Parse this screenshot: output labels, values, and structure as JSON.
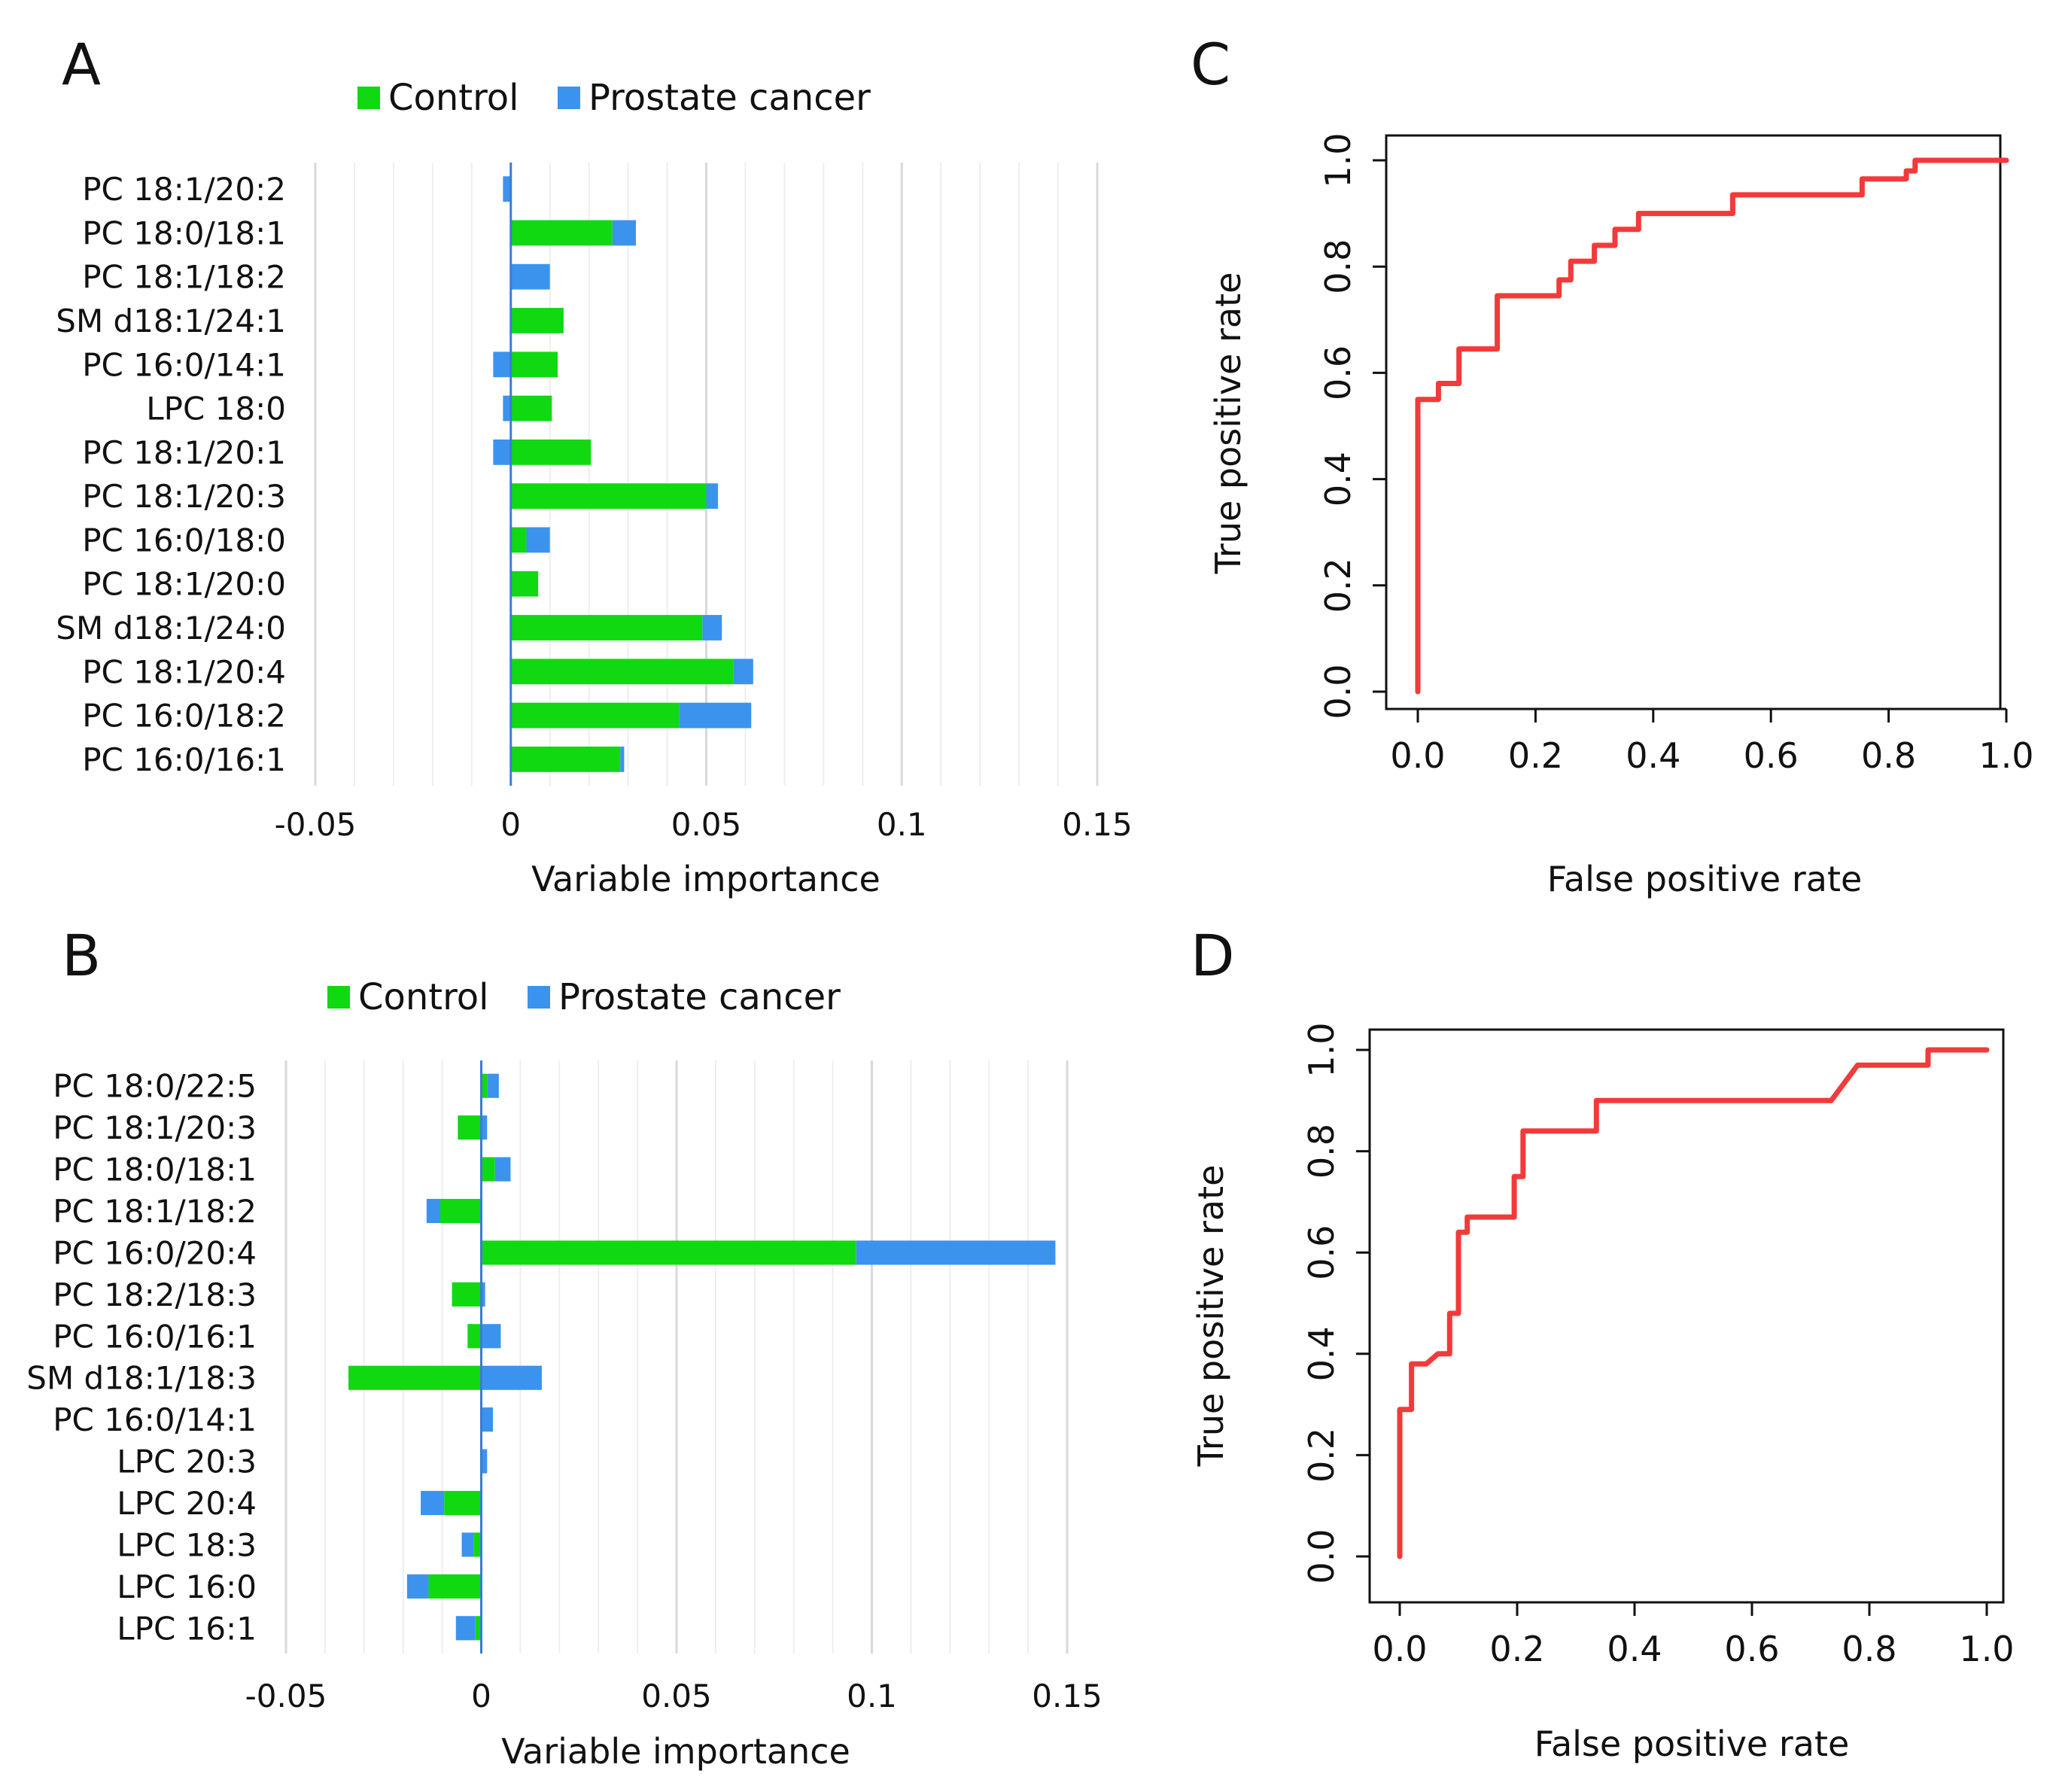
{
  "colors": {
    "control": "#11d911",
    "prostate_cancer": "#3b93ee",
    "roc": "#f23a3a",
    "grid": "#e6e6e6",
    "axis": "#3a7bd5"
  },
  "panels": {
    "a": "A",
    "b": "B",
    "c": "C",
    "d": "D"
  },
  "chart_data": [
    {
      "panel": "A",
      "type": "bar",
      "orientation": "horizontal",
      "stacked": true,
      "legend": [
        "Control",
        "Prostate cancer"
      ],
      "legend_position": "top",
      "xlabel": "Variable importance",
      "xlim": [
        -0.05,
        0.15
      ],
      "xticks": [
        -0.05,
        0,
        0.05,
        0.1,
        0.15
      ],
      "xtick_labels": [
        "-0.05",
        "0",
        "0.05",
        "0.1",
        "0.15"
      ],
      "categories": [
        "PC 18:1/20:2",
        "PC 18:0/18:1",
        "PC 18:1/18:2",
        "SM d18:1/24:1",
        "PC 16:0/14:1",
        "LPC 18:0",
        "PC 18:1/20:1",
        "PC 18:1/20:3",
        "PC 16:0/18:0",
        "PC 18:1/20:0",
        "SM d18:1/24:0",
        "PC 18:1/20:4",
        "PC 16:0/18:2",
        "PC 16:0/16:1"
      ],
      "series": [
        {
          "name": "Control",
          "values": [
            0.0,
            0.026,
            0.0,
            0.0135,
            0.012,
            0.0105,
            0.0205,
            0.05,
            0.004,
            0.007,
            0.049,
            0.057,
            0.043,
            0.028
          ]
        },
        {
          "name": "Prostate cancer",
          "values": [
            -0.002,
            0.006,
            0.01,
            0.0,
            -0.0045,
            -0.002,
            -0.0045,
            0.003,
            0.006,
            0.0,
            0.005,
            0.005,
            0.0185,
            0.001
          ]
        }
      ]
    },
    {
      "panel": "B",
      "type": "bar",
      "orientation": "horizontal",
      "stacked": true,
      "legend": [
        "Control",
        "Prostate cancer"
      ],
      "legend_position": "top",
      "xlabel": "Variable importance",
      "xlim": [
        -0.05,
        0.15
      ],
      "xticks": [
        -0.05,
        0,
        0.05,
        0.1,
        0.15
      ],
      "xtick_labels": [
        "-0.05",
        "0",
        "0.05",
        "0.1",
        "0.15"
      ],
      "categories": [
        "PC 18:0/22:5",
        "PC 18:1/20:3",
        "PC 18:0/18:1",
        "PC 18:1/18:2",
        "PC 16:0/20:4",
        "PC 18:2/18:3",
        "PC 16:0/16:1",
        "SM d18:1/18:3",
        "PC 16:0/14:1",
        "LPC 20:3",
        "LPC 20:4",
        "LPC 18:3",
        "LPC 16:0",
        "LPC 16:1"
      ],
      "series": [
        {
          "name": "Control",
          "values": [
            0.0015,
            -0.006,
            0.0035,
            -0.0105,
            0.096,
            -0.0075,
            -0.0035,
            -0.034,
            0.0,
            0.0,
            -0.0095,
            -0.002,
            -0.0135,
            -0.0015
          ]
        },
        {
          "name": "Prostate cancer",
          "values": [
            0.003,
            0.0015,
            0.004,
            -0.0035,
            0.051,
            0.001,
            0.005,
            0.0155,
            0.003,
            0.0015,
            -0.006,
            -0.003,
            -0.0055,
            -0.005
          ]
        }
      ]
    },
    {
      "panel": "C",
      "type": "line",
      "title": "",
      "xlabel": "False positive rate",
      "ylabel": "True positive rate",
      "xlim": [
        0,
        1
      ],
      "ylim": [
        0,
        1
      ],
      "xticks": [
        0,
        0.2,
        0.4,
        0.6,
        0.8,
        1
      ],
      "xtick_labels": [
        "0.0",
        "0.2",
        "0.4",
        "0.6",
        "0.8",
        "1.0"
      ],
      "yticks": [
        0,
        0.2,
        0.4,
        0.6,
        0.8,
        1
      ],
      "ytick_labels": [
        "0.0",
        "0.2",
        "0.4",
        "0.6",
        "0.8",
        "1.0"
      ],
      "x": [
        0.0,
        0.0,
        0.0,
        0.035,
        0.035,
        0.07,
        0.07,
        0.135,
        0.135,
        0.24,
        0.24,
        0.26,
        0.26,
        0.3,
        0.3,
        0.335,
        0.335,
        0.375,
        0.375,
        0.535,
        0.535,
        0.755,
        0.755,
        0.83,
        0.83,
        0.845,
        0.845,
        1.0
      ],
      "y": [
        0.0,
        0.55,
        0.55,
        0.55,
        0.58,
        0.58,
        0.645,
        0.645,
        0.745,
        0.745,
        0.775,
        0.775,
        0.81,
        0.81,
        0.84,
        0.84,
        0.87,
        0.87,
        0.9,
        0.9,
        0.935,
        0.935,
        0.965,
        0.965,
        0.98,
        0.98,
        1.0,
        1.0
      ]
    },
    {
      "panel": "D",
      "type": "line",
      "title": "",
      "xlabel": "False positive rate",
      "ylabel": "True positive rate",
      "xlim": [
        0,
        1
      ],
      "ylim": [
        0,
        1
      ],
      "xticks": [
        0,
        0.2,
        0.4,
        0.6,
        0.8,
        1
      ],
      "xtick_labels": [
        "0.0",
        "0.2",
        "0.4",
        "0.6",
        "0.8",
        "1.0"
      ],
      "yticks": [
        0,
        0.2,
        0.4,
        0.6,
        0.8,
        1
      ],
      "ytick_labels": [
        "0.0",
        "0.2",
        "0.4",
        "0.6",
        "0.8",
        "1.0"
      ],
      "x": [
        0.0,
        0.0,
        0.02,
        0.02,
        0.045,
        0.065,
        0.085,
        0.085,
        0.1,
        0.1,
        0.115,
        0.115,
        0.135,
        0.135,
        0.195,
        0.195,
        0.21,
        0.21,
        0.335,
        0.335,
        0.735,
        0.78,
        0.9,
        0.9,
        1.0
      ],
      "y": [
        0.0,
        0.29,
        0.29,
        0.38,
        0.38,
        0.4,
        0.4,
        0.48,
        0.48,
        0.64,
        0.64,
        0.67,
        0.67,
        0.67,
        0.67,
        0.75,
        0.75,
        0.84,
        0.84,
        0.9,
        0.9,
        0.97,
        0.97,
        1.0,
        1.0
      ]
    }
  ]
}
